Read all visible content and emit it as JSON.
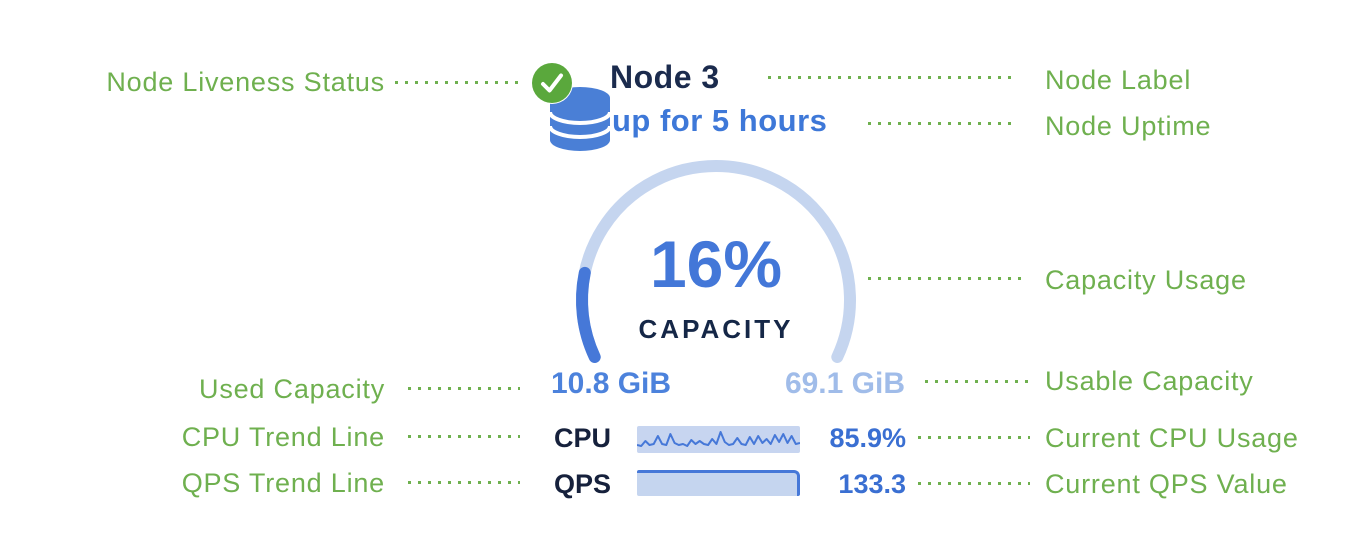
{
  "colors": {
    "annotation_green": "#6fb04f",
    "status_green": "#5aa83c",
    "node_blue": "#4a7fd6",
    "dark_navy": "#1b2b4d",
    "value_blue": "#3a6fd2",
    "uptime_blue": "#3e78d8",
    "used_blue": "#4c82dc",
    "usable_blue": "#a0bce9",
    "track_blue": "#c5d5ef",
    "fill_blue": "#4678d8",
    "spark_bg": "#c7d5f0"
  },
  "annotations": {
    "node_liveness_status": "Node Liveness Status",
    "node_label": "Node Label",
    "node_uptime": "Node Uptime",
    "capacity_usage": "Capacity Usage",
    "used_capacity": "Used Capacity",
    "usable_capacity": "Usable Capacity",
    "cpu_trend_line": "CPU Trend Line",
    "current_cpu_usage": "Current CPU Usage",
    "qps_trend_line": "QPS Trend Line",
    "current_qps_value": "Current QPS Value"
  },
  "node_card": {
    "title": "Node 3",
    "uptime": "up for 5 hours",
    "status_icon": "check-circle",
    "node_icon": "database-cylinder",
    "capacity": {
      "percent": 16,
      "percent_label": "16%",
      "caption": "CAPACITY",
      "used": "10.8 GiB",
      "usable": "69.1 GiB"
    },
    "cpu": {
      "label": "CPU",
      "value": "85.9%",
      "sparkline": [
        0.25,
        0.2,
        0.45,
        0.25,
        0.3,
        0.7,
        0.3,
        0.25,
        0.8,
        0.35,
        0.25,
        0.3,
        0.2,
        0.5,
        0.3,
        0.45,
        0.3,
        0.25,
        0.55,
        0.3,
        0.9,
        0.4,
        0.25,
        0.3,
        0.6,
        0.3,
        0.25,
        0.65,
        0.3,
        0.7,
        0.35,
        0.55,
        0.3,
        0.75,
        0.4,
        0.8,
        0.35,
        0.7,
        0.3,
        0.35
      ]
    },
    "qps": {
      "label": "QPS",
      "value": "133.3"
    }
  }
}
